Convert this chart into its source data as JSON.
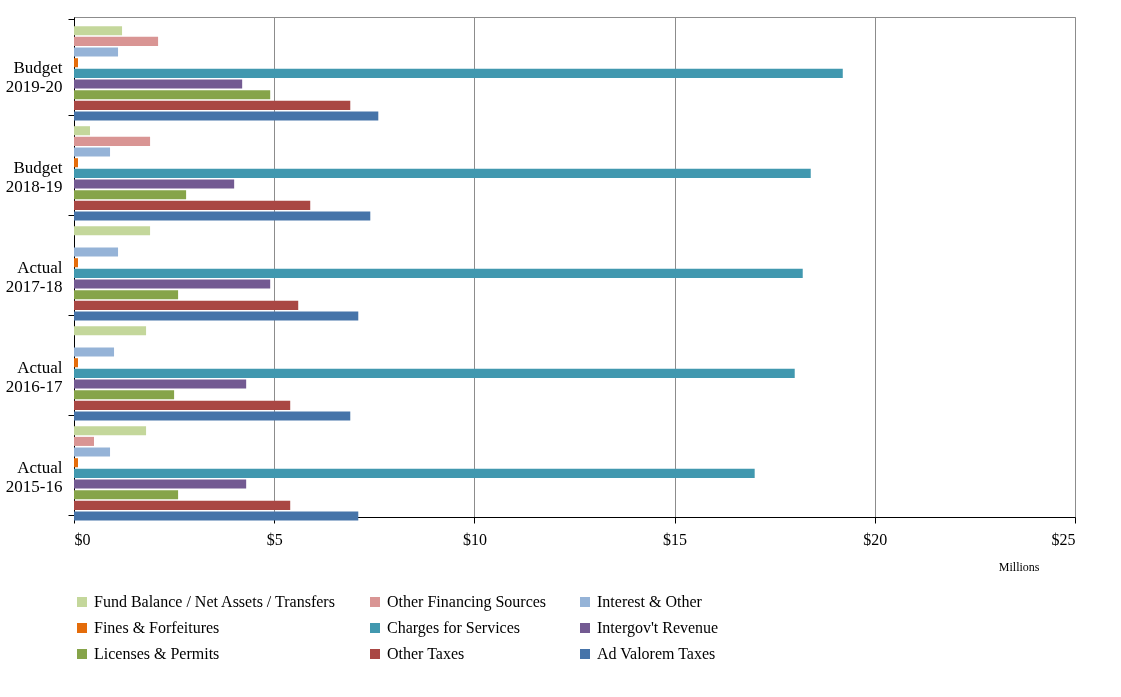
{
  "chart_data": {
    "type": "bar",
    "orientation": "horizontal",
    "xlabel": "Millions",
    "categories": [
      "Budget 2019-20",
      "Budget 2018-19",
      "Actual 2017-18",
      "Actual 2016-17",
      "Actual 2015-16"
    ],
    "series": [
      {
        "name": "Fund Balance / Net Assets / Transfers",
        "color": "#c4d79b",
        "values": [
          1.2,
          0.4,
          1.9,
          1.8,
          1.8
        ]
      },
      {
        "name": "Other Financing Sources",
        "color": "#d99594",
        "values": [
          2.1,
          1.9,
          null,
          null,
          0.5
        ]
      },
      {
        "name": "Interest & Other",
        "color": "#95b3d7",
        "values": [
          1.1,
          0.9,
          1.1,
          1.0,
          0.9
        ]
      },
      {
        "name": "Fines & Forfeitures",
        "color": "#e46c0a",
        "values": [
          0.1,
          0.1,
          0.1,
          0.1,
          0.1
        ]
      },
      {
        "name": "Charges for Services",
        "color": "#4198af",
        "values": [
          19.2,
          18.4,
          18.2,
          18.0,
          17.0
        ]
      },
      {
        "name": "Intergov't Revenue",
        "color": "#735a92",
        "values": [
          4.2,
          4.0,
          4.9,
          4.3,
          4.3
        ]
      },
      {
        "name": "Licenses & Permits",
        "color": "#86a449",
        "values": [
          4.9,
          2.8,
          2.6,
          2.5,
          2.6
        ]
      },
      {
        "name": "Other Taxes",
        "color": "#a94744",
        "values": [
          6.9,
          5.9,
          5.6,
          5.4,
          5.4
        ]
      },
      {
        "name": "Ad Valorem Taxes",
        "color": "#4674a9",
        "values": [
          7.6,
          7.4,
          7.1,
          6.9,
          7.1
        ]
      }
    ],
    "xlim": [
      0,
      25
    ],
    "xticks": [
      {
        "value": 0,
        "label": "$0"
      },
      {
        "value": 5,
        "label": "$5"
      },
      {
        "value": 10,
        "label": "$10"
      },
      {
        "value": 15,
        "label": "$15"
      },
      {
        "value": 20,
        "label": "$20"
      },
      {
        "value": 25,
        "label": "$25"
      }
    ],
    "grid": "x",
    "legend": "bottom"
  }
}
